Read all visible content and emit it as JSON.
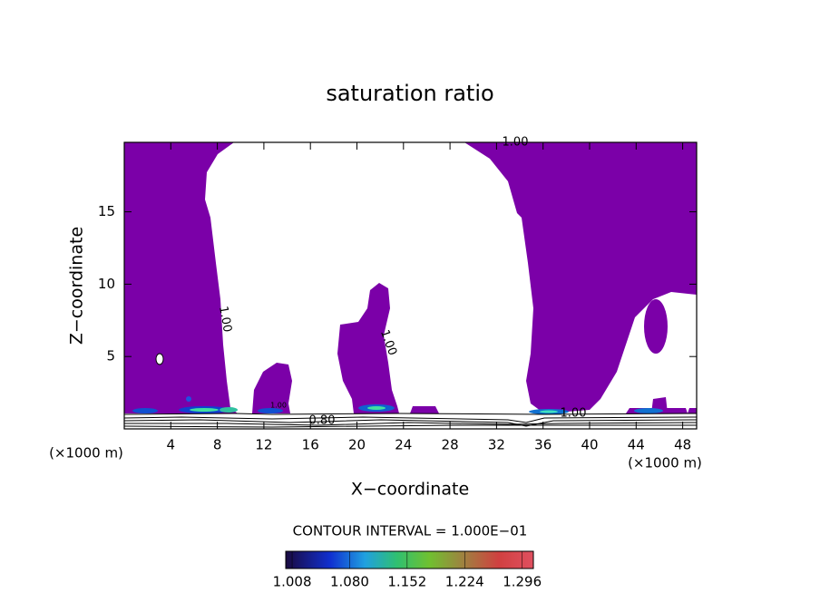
{
  "chart_data": {
    "type": "contour",
    "title": "saturation ratio",
    "x_label": "X−coordinate",
    "y_label": "Z−coordinate",
    "x_unit_left": "(×1000 m)",
    "x_unit_right": "(×1000 m)",
    "xlim": [
      0,
      49.2
    ],
    "xticks": [
      4,
      8,
      12,
      16,
      20,
      24,
      28,
      32,
      36,
      40,
      44,
      48
    ],
    "ylim": [
      0,
      19.8
    ],
    "yticks": [
      5,
      10,
      15
    ],
    "fill_color": "#7b00a8",
    "contour_labels": [
      "1.00",
      "1.00",
      "1.00",
      "1.00",
      "0.80",
      "1.00"
    ],
    "contour_interval": "CONTOUR INTERVAL = 1.000E−01",
    "colorbar_lim": [
      1.0,
      1.31
    ],
    "colorbar_ticks": [
      {
        "value": 1.008,
        "label": "1.008"
      },
      {
        "value": 1.08,
        "label": "1.080"
      },
      {
        "value": 1.152,
        "label": "1.152"
      },
      {
        "value": 1.224,
        "label": "1.224"
      },
      {
        "value": 1.296,
        "label": "1.296"
      }
    ]
  }
}
